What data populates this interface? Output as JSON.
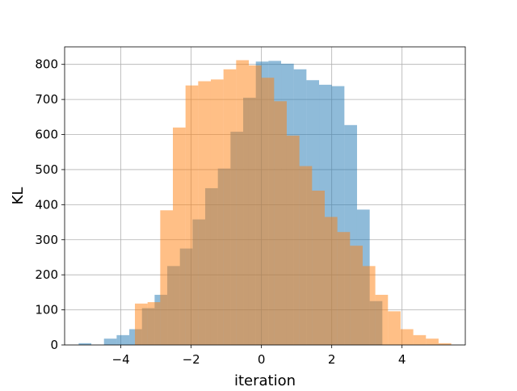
{
  "chart_data": {
    "type": "histogram",
    "title": "",
    "xlabel": "iteration",
    "ylabel": "KL",
    "xlim": [
      -5.6,
      5.8
    ],
    "ylim": [
      0,
      850
    ],
    "x_ticks": [
      -4,
      -2,
      0,
      2,
      4
    ],
    "x_tick_labels": [
      "−4",
      "−2",
      "0",
      "2",
      "4"
    ],
    "y_ticks": [
      0,
      100,
      200,
      300,
      400,
      500,
      600,
      700,
      800
    ],
    "grid": true,
    "legend": "none",
    "series": [
      {
        "color": "#1f77b4",
        "opacity": 0.5,
        "bin_edges": [
          -5.2,
          -4.84,
          -4.48,
          -4.12,
          -3.76,
          -3.4,
          -3.04,
          -2.68,
          -2.32,
          -1.96,
          -1.6,
          -1.24,
          -0.88,
          -0.52,
          -0.16,
          0.2,
          0.56,
          0.92,
          1.28,
          1.64,
          2.0,
          2.36,
          2.72,
          3.08,
          3.44
        ],
        "counts": [
          5,
          0,
          18,
          28,
          45,
          105,
          143,
          225,
          275,
          358,
          447,
          503,
          608,
          705,
          808,
          810,
          802,
          786,
          755,
          742,
          738,
          627,
          386,
          125
        ]
      },
      {
        "color": "#ff7f0e",
        "opacity": 0.5,
        "bin_edges": [
          -3.6,
          -3.24,
          -2.88,
          -2.52,
          -2.16,
          -1.8,
          -1.44,
          -1.08,
          -0.72,
          -0.36,
          0.0,
          0.36,
          0.72,
          1.08,
          1.44,
          1.8,
          2.16,
          2.52,
          2.88,
          3.24,
          3.6,
          3.96,
          4.32,
          4.68,
          5.04,
          5.4
        ],
        "counts": [
          118,
          122,
          384,
          620,
          740,
          752,
          757,
          786,
          812,
          797,
          762,
          695,
          597,
          510,
          440,
          365,
          322,
          283,
          225,
          143,
          96,
          45,
          28,
          18,
          5
        ]
      }
    ]
  }
}
